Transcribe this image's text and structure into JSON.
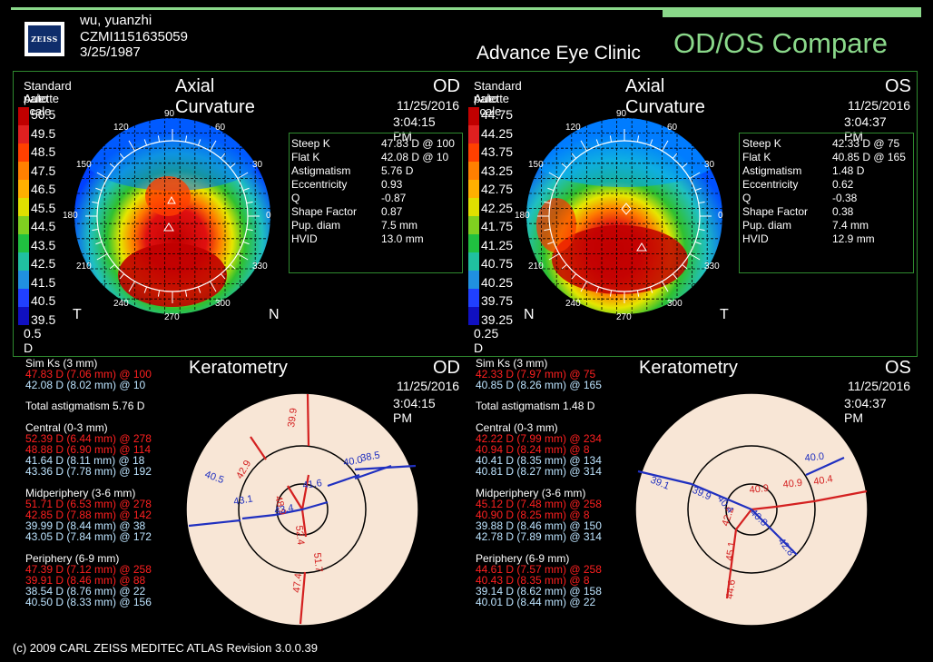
{
  "header": {
    "patient_name": "wu, yuanzhi",
    "patient_id": "CZMI1151635059",
    "dob": "3/25/1987",
    "logo_text": "ZEISS",
    "clinic": "Advance Eye Clinic",
    "title": "OD/OS Compare"
  },
  "colors": {
    "accent": "#8ad88a",
    "frame": "#2f8a2f",
    "red_text": "#ff2020"
  },
  "od_map": {
    "palette": "Standard palette",
    "scale_mode": "Auto scale",
    "title": "Axial Curvature",
    "eye": "OD",
    "date": "11/25/2016",
    "time": "3:04:15 PM",
    "scale": [
      "50.5",
      "49.5",
      "48.5",
      "47.5",
      "46.5",
      "45.5",
      "44.5",
      "43.5",
      "42.5",
      "41.5",
      "40.5",
      "39.5"
    ],
    "step": "0.5 D",
    "left_label": "T",
    "right_label": "N",
    "angles": [
      "90",
      "60",
      "30",
      "0",
      "330",
      "300",
      "270",
      "240",
      "210",
      "180",
      "150",
      "120"
    ],
    "stats_labels": [
      "Steep K",
      "Flat K",
      "Astigmatism",
      "Eccentricity",
      "Q",
      "Shape Factor",
      "Pup. diam",
      "HVID"
    ],
    "stats_values": [
      "47.83 D @ 100",
      "42.08 D @ 10",
      "5.76 D",
      "0.93",
      "-0.87",
      "0.87",
      "7.5 mm",
      "13.0 mm"
    ]
  },
  "os_map": {
    "palette": "Standard palette",
    "scale_mode": "Auto scale",
    "title": "Axial Curvature",
    "eye": "OS",
    "date": "11/25/2016",
    "time": "3:04:37 PM",
    "scale": [
      "44.75",
      "44.25",
      "43.75",
      "43.25",
      "42.75",
      "42.25",
      "41.75",
      "41.25",
      "40.75",
      "40.25",
      "39.75",
      "39.25"
    ],
    "step": "0.25 D",
    "left_label": "N",
    "right_label": "T",
    "angles": [
      "90",
      "60",
      "30",
      "0",
      "330",
      "300",
      "270",
      "240",
      "210",
      "180",
      "150",
      "120"
    ],
    "stats_labels": [
      "Steep K",
      "Flat K",
      "Astigmatism",
      "Eccentricity",
      "Q",
      "Shape Factor",
      "Pup. diam",
      "HVID"
    ],
    "stats_values": [
      "42.33 D @ 75",
      "40.85 D @ 165",
      "1.48 D",
      "0.62",
      "-0.38",
      "0.38",
      "7.4 mm",
      "12.9 mm"
    ]
  },
  "od_kera": {
    "title": "Keratometry",
    "eye": "OD",
    "date": "11/25/2016",
    "time": "3:04:15 PM",
    "simk_title": "Sim Ks (3 mm)",
    "simk_steep": "47.83 D (7.06 mm) @ 100",
    "simk_flat": "42.08 D (8.02 mm) @ 10",
    "total_astig": "Total astigmatism 5.76 D",
    "central_title": "Central (0-3 mm)",
    "central": [
      "52.39 D (6.44 mm) @ 278",
      "48.88 D (6.90 mm) @ 114",
      "41.64 D (8.11 mm) @ 18",
      "43.36 D (7.78 mm) @ 192"
    ],
    "mid_title": "Midperiphery (3-6 mm)",
    "mid": [
      "51.71 D (6.53 mm) @ 278",
      "42.85 D (7.88 mm) @ 142",
      "39.99 D (8.44 mm) @ 38",
      "43.05 D (7.84 mm) @ 172"
    ],
    "peri_title": "Periphery (6-9 mm)",
    "peri": [
      "47.39 D (7.12 mm) @ 258",
      "39.91 D (8.46 mm) @ 88",
      "38.54 D (8.76 mm) @ 22",
      "40.50 D (8.33 mm) @ 156"
    ],
    "diagram_red": [
      "39.9",
      "42.9",
      "48.9",
      "52.4",
      "51.7",
      "47.4"
    ],
    "diagram_blue": [
      "40.5",
      "43.1",
      "43.4",
      "41.6",
      "40.0",
      "38.5"
    ]
  },
  "os_kera": {
    "title": "Keratometry",
    "eye": "OS",
    "date": "11/25/2016",
    "time": "3:04:37 PM",
    "simk_title": "Sim Ks (3 mm)",
    "simk_steep": "42.33 D (7.97 mm) @ 75",
    "simk_flat": "40.85 D (8.26 mm) @ 165",
    "total_astig": "Total astigmatism 1.48 D",
    "central_title": "Central (0-3 mm)",
    "central": [
      "42.22 D (7.99 mm) @ 234",
      "40.94 D (8.24 mm) @ 8",
      "40.41 D (8.35 mm) @ 134",
      "40.81 D (8.27 mm) @ 314"
    ],
    "mid_title": "Midperiphery (3-6 mm)",
    "mid": [
      "45.12 D (7.48 mm) @ 258",
      "40.90 D (8.25 mm) @ 8",
      "39.88 D (8.46 mm) @ 150",
      "42.78 D (7.89 mm) @ 314"
    ],
    "peri_title": "Periphery (6-9 mm)",
    "peri": [
      "44.61 D (7.57 mm) @ 258",
      "40.43 D (8.35 mm) @ 8",
      "39.14 D (8.62 mm) @ 158",
      "40.01 D (8.44 mm) @ 22"
    ],
    "diagram_red": [
      "40.9",
      "40.9",
      "40.4",
      "42.2",
      "45.1",
      "44.6"
    ],
    "diagram_blue": [
      "39.1",
      "39.9",
      "40.4",
      "40.8",
      "42.8",
      "40.0"
    ]
  },
  "footer": "(c) 2009 CARL ZEISS MEDITEC     ATLAS     Revision  3.0.0.39"
}
